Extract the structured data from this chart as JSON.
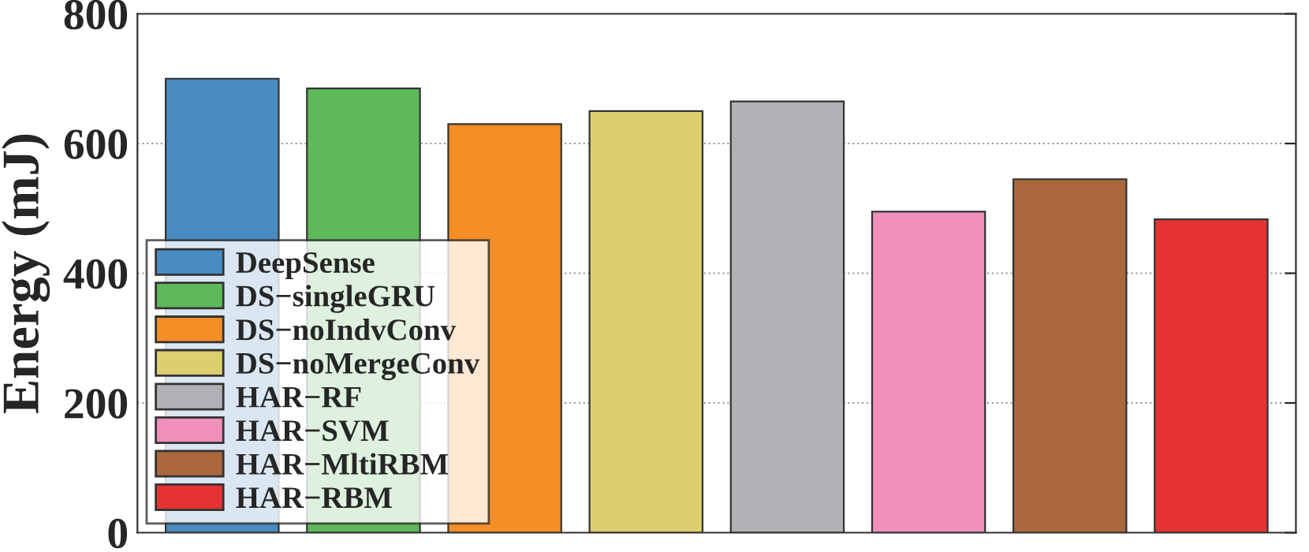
{
  "chart_data": {
    "type": "bar",
    "ylabel": "Energy (mJ)",
    "categories": [
      null,
      null,
      null,
      null,
      null,
      null,
      null,
      null
    ],
    "series": [
      {
        "name": "DeepSense",
        "color": "#4a8bc2",
        "values": [
          700,
          null,
          null,
          null,
          null,
          null,
          null,
          null
        ]
      },
      {
        "name": "DS−singleGRU",
        "color": "#5eb95b",
        "values": [
          null,
          685,
          null,
          null,
          null,
          null,
          null,
          null
        ]
      },
      {
        "name": "DS−noIndvConv",
        "color": "#f48e26",
        "values": [
          null,
          null,
          630,
          null,
          null,
          null,
          null,
          null
        ]
      },
      {
        "name": "DS−noMergeConv",
        "color": "#dccf6f",
        "values": [
          null,
          null,
          null,
          650,
          null,
          null,
          null,
          null
        ]
      },
      {
        "name": "HAR−RF",
        "color": "#b0b1b4",
        "values": [
          null,
          null,
          null,
          null,
          665,
          null,
          null,
          null
        ]
      },
      {
        "name": "HAR−SVM",
        "color": "#ef90bc",
        "values": [
          null,
          null,
          null,
          null,
          null,
          495,
          null,
          null
        ]
      },
      {
        "name": "HAR−MltiRBM",
        "color": "#ab673c",
        "values": [
          null,
          null,
          null,
          null,
          null,
          null,
          545,
          null
        ]
      },
      {
        "name": "HAR−RBM",
        "color": "#e53334",
        "values": [
          null,
          null,
          null,
          null,
          null,
          null,
          null,
          483
        ]
      }
    ],
    "ylim": [
      0,
      800
    ],
    "yticks": [
      0,
      200,
      400,
      600,
      800
    ],
    "grid": "y",
    "legend": "bottom left"
  }
}
